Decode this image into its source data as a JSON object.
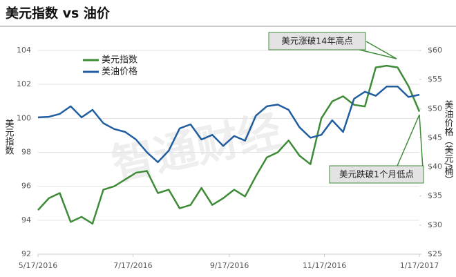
{
  "chart_data": {
    "type": "line",
    "title": "美元指数 vs 油价",
    "watermark": "智通财经",
    "y_label": "美元指数",
    "y2_label": "美油价格（美元/桶）",
    "annotations": [
      "美元涨破14年高点",
      "美元跌破1个月低点"
    ],
    "x": [
      "5/17/2016",
      "5/24/2016",
      "5/31/2016",
      "6/7/2016",
      "6/14/2016",
      "6/21/2016",
      "6/28/2016",
      "7/5/2016",
      "7/12/2016",
      "7/19/2016",
      "7/26/2016",
      "8/2/2016",
      "8/9/2016",
      "8/16/2016",
      "8/23/2016",
      "8/30/2016",
      "9/6/2016",
      "9/13/2016",
      "9/20/2016",
      "9/27/2016",
      "10/4/2016",
      "10/11/2016",
      "10/18/2016",
      "10/25/2016",
      "11/1/2016",
      "11/8/2016",
      "11/15/2016",
      "11/22/2016",
      "11/29/2016",
      "12/6/2016",
      "12/13/2016",
      "12/20/2016",
      "12/27/2016",
      "1/3/2017",
      "1/10/2017",
      "1/17/2017"
    ],
    "xlim": [
      "5/17/2016",
      "1/17/2017"
    ],
    "xticks": [
      "5/17/2016",
      "7/17/2016",
      "9/17/2016",
      "11/17/2016",
      "1/17/2017"
    ],
    "series": [
      {
        "name": "美元指数",
        "color": "#3d8b37",
        "axis": "y",
        "values": [
          94.6,
          95.3,
          95.6,
          93.9,
          94.2,
          93.8,
          95.8,
          96.0,
          96.4,
          96.8,
          96.9,
          95.6,
          95.8,
          94.7,
          94.9,
          95.9,
          94.9,
          95.3,
          95.8,
          95.4,
          96.6,
          97.7,
          98.0,
          98.7,
          97.8,
          97.3,
          100.0,
          101.0,
          101.3,
          100.8,
          100.7,
          103.0,
          103.1,
          103.0,
          101.9,
          100.4
        ]
      },
      {
        "name": "美油价格",
        "color": "#1f5d9e",
        "axis": "y2",
        "values": [
          48.5,
          48.6,
          49.1,
          50.4,
          48.5,
          49.8,
          47.5,
          46.5,
          46.0,
          44.7,
          42.5,
          40.8,
          42.8,
          46.6,
          47.3,
          44.7,
          45.5,
          43.6,
          45.3,
          44.5,
          48.8,
          50.4,
          50.7,
          49.8,
          46.8,
          45.0,
          45.5,
          48.0,
          46.0,
          51.7,
          52.9,
          52.2,
          53.8,
          53.8,
          52.0,
          52.4
        ]
      }
    ],
    "ylim": [
      92,
      104
    ],
    "yticks": [
      92,
      94,
      96,
      98,
      100,
      102,
      104
    ],
    "y2lim": [
      25,
      60
    ],
    "y2ticks": [
      {
        "value": 25,
        "label": "$25"
      },
      {
        "value": 30,
        "label": "$30"
      },
      {
        "value": 35,
        "label": "$35"
      },
      {
        "value": 40,
        "label": "$40"
      },
      {
        "value": 45,
        "label": "$45"
      },
      {
        "value": 50,
        "label": "$50"
      },
      {
        "value": 55,
        "label": "$55"
      },
      {
        "value": 60,
        "label": "$60"
      }
    ],
    "grid": true
  }
}
